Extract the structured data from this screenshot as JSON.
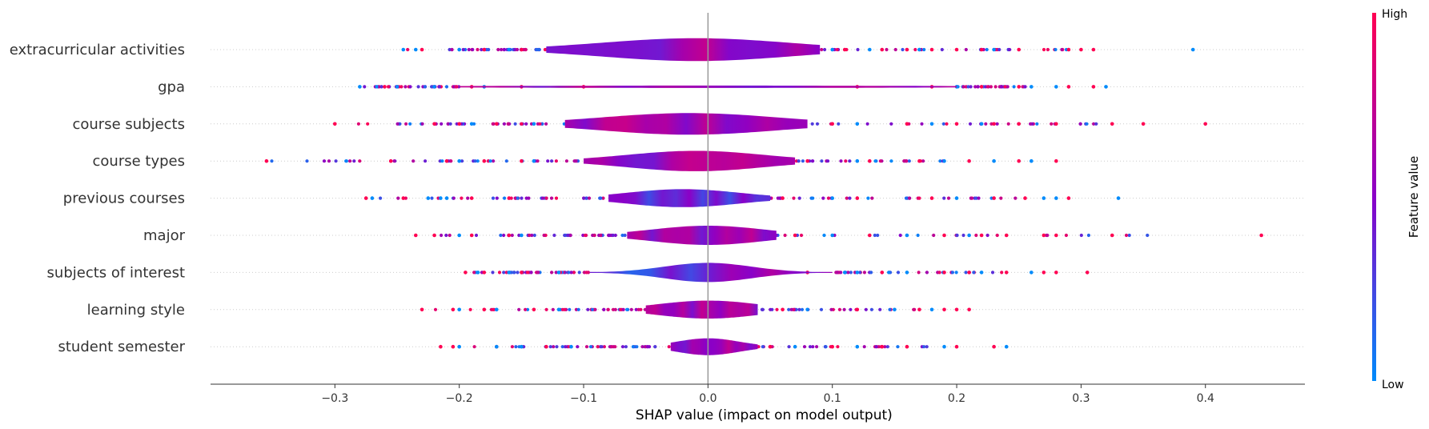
{
  "chart_data": {
    "type": "violin-summary",
    "xlabel": "SHAP value (impact on model output)",
    "xlim": [
      -0.4,
      0.48
    ],
    "xticks": [
      -0.3,
      -0.2,
      -0.1,
      0.0,
      0.1,
      0.2,
      0.3,
      0.4
    ],
    "xtick_labels": [
      "−0.3",
      "−0.2",
      "−0.1",
      "0.0",
      "0.1",
      "0.2",
      "0.3",
      "0.4"
    ],
    "features": [
      {
        "name": "extracurricular activities",
        "min": -0.245,
        "max": 0.39,
        "width": 0.95,
        "spread": 0.075,
        "center": -0.01,
        "body": [
          -0.13,
          0.09
        ],
        "outliers_high": [
          -0.23,
          -0.18,
          -0.15,
          -0.12,
          0.11,
          0.14,
          0.16,
          0.18,
          0.2,
          0.22,
          0.25,
          0.29,
          0.3,
          0.31
        ],
        "outliers_low": [
          -0.245,
          -0.235,
          -0.2,
          -0.16,
          0.1,
          0.13,
          0.17,
          0.23,
          0.39
        ]
      },
      {
        "name": "gpa",
        "min": -0.28,
        "max": 0.32,
        "width": 0.1,
        "spread": 0.2,
        "center": 0.0,
        "body": [
          -0.2,
          0.2
        ],
        "outliers_high": [
          -0.26,
          -0.19,
          -0.15,
          -0.1,
          0.12,
          0.18,
          0.22,
          0.25,
          0.29,
          0.31
        ],
        "outliers_low": [
          -0.28,
          -0.25,
          -0.22,
          -0.18,
          0.2,
          0.26,
          0.28,
          0.32
        ]
      },
      {
        "name": "course subjects",
        "min": -0.3,
        "max": 0.4,
        "width": 0.9,
        "spread": 0.07,
        "center": -0.015,
        "body": [
          -0.115,
          0.08
        ],
        "outliers_high": [
          -0.3,
          -0.22,
          -0.2,
          -0.17,
          0.1,
          0.16,
          0.2,
          0.23,
          0.25,
          0.28,
          0.325,
          0.35,
          0.4
        ],
        "outliers_low": [
          -0.19,
          -0.14,
          0.12,
          0.18,
          0.22
        ]
      },
      {
        "name": "course types",
        "min": -0.355,
        "max": 0.28,
        "width": 0.85,
        "spread": 0.055,
        "center": -0.01,
        "body": [
          -0.1,
          0.07
        ],
        "outliers_high": [
          -0.355,
          -0.255,
          -0.21,
          -0.18,
          -0.15,
          0.08,
          0.13,
          0.17,
          0.21,
          0.25,
          0.28
        ],
        "outliers_low": [
          -0.2,
          -0.14,
          0.12,
          0.19,
          0.23,
          0.26
        ]
      },
      {
        "name": "previous courses",
        "min": -0.275,
        "max": 0.33,
        "width": 0.75,
        "spread": 0.045,
        "center": -0.02,
        "body": [
          -0.08,
          0.05
        ],
        "outliers_high": [
          -0.275,
          -0.245,
          -0.19,
          -0.16,
          0.06,
          0.12,
          0.18,
          0.23,
          0.255,
          0.29
        ],
        "outliers_low": [
          -0.27,
          -0.225,
          -0.215,
          -0.21,
          0.1,
          0.2,
          0.27,
          0.28,
          0.33
        ]
      },
      {
        "name": "major",
        "min": -0.235,
        "max": 0.445,
        "width": 0.8,
        "spread": 0.045,
        "center": 0.0,
        "body": [
          -0.065,
          0.055
        ],
        "outliers_high": [
          -0.235,
          -0.22,
          -0.19,
          -0.16,
          0.07,
          0.13,
          0.19,
          0.22,
          0.24,
          0.27,
          0.28,
          0.325,
          0.445
        ],
        "outliers_low": [
          -0.2,
          -0.15,
          0.1,
          0.16,
          0.21
        ]
      },
      {
        "name": "subjects of interest",
        "min": -0.195,
        "max": 0.305,
        "width": 0.8,
        "spread": 0.035,
        "center": 0.0,
        "body": [
          -0.095,
          0.1
        ],
        "outliers_high": [
          -0.195,
          -0.18,
          -0.15,
          0.08,
          0.14,
          0.19,
          0.21,
          0.24,
          0.27,
          0.28,
          0.305
        ],
        "outliers_low": [
          -0.185,
          -0.16,
          -0.12,
          0.11,
          0.12,
          0.16,
          0.22,
          0.26
        ]
      },
      {
        "name": "learning style",
        "min": -0.23,
        "max": 0.21,
        "width": 0.75,
        "spread": 0.04,
        "center": 0.0,
        "body": [
          -0.05,
          0.04
        ],
        "outliers_high": [
          -0.23,
          -0.205,
          -0.18,
          -0.14,
          0.06,
          0.12,
          0.17,
          0.19,
          0.2,
          0.21
        ],
        "outliers_low": [
          -0.2,
          -0.17,
          -0.12,
          0.08,
          0.15,
          0.18
        ]
      },
      {
        "name": "student semester",
        "min": -0.215,
        "max": 0.24,
        "width": 0.7,
        "spread": 0.025,
        "center": 0.0,
        "body": [
          -0.03,
          0.04
        ],
        "outliers_high": [
          -0.215,
          -0.205,
          -0.17,
          -0.13,
          0.05,
          0.1,
          0.14,
          0.16,
          0.2,
          0.23
        ],
        "outliers_low": [
          -0.2,
          -0.17,
          -0.15,
          -0.11,
          0.07,
          0.12,
          0.19,
          0.24
        ]
      }
    ],
    "colorbar": {
      "label": "Feature value",
      "high": "High",
      "low": "Low",
      "high_color": "#ff0052",
      "low_color": "#008bfb",
      "mid_color": "#8a00c8"
    },
    "grid": false
  }
}
